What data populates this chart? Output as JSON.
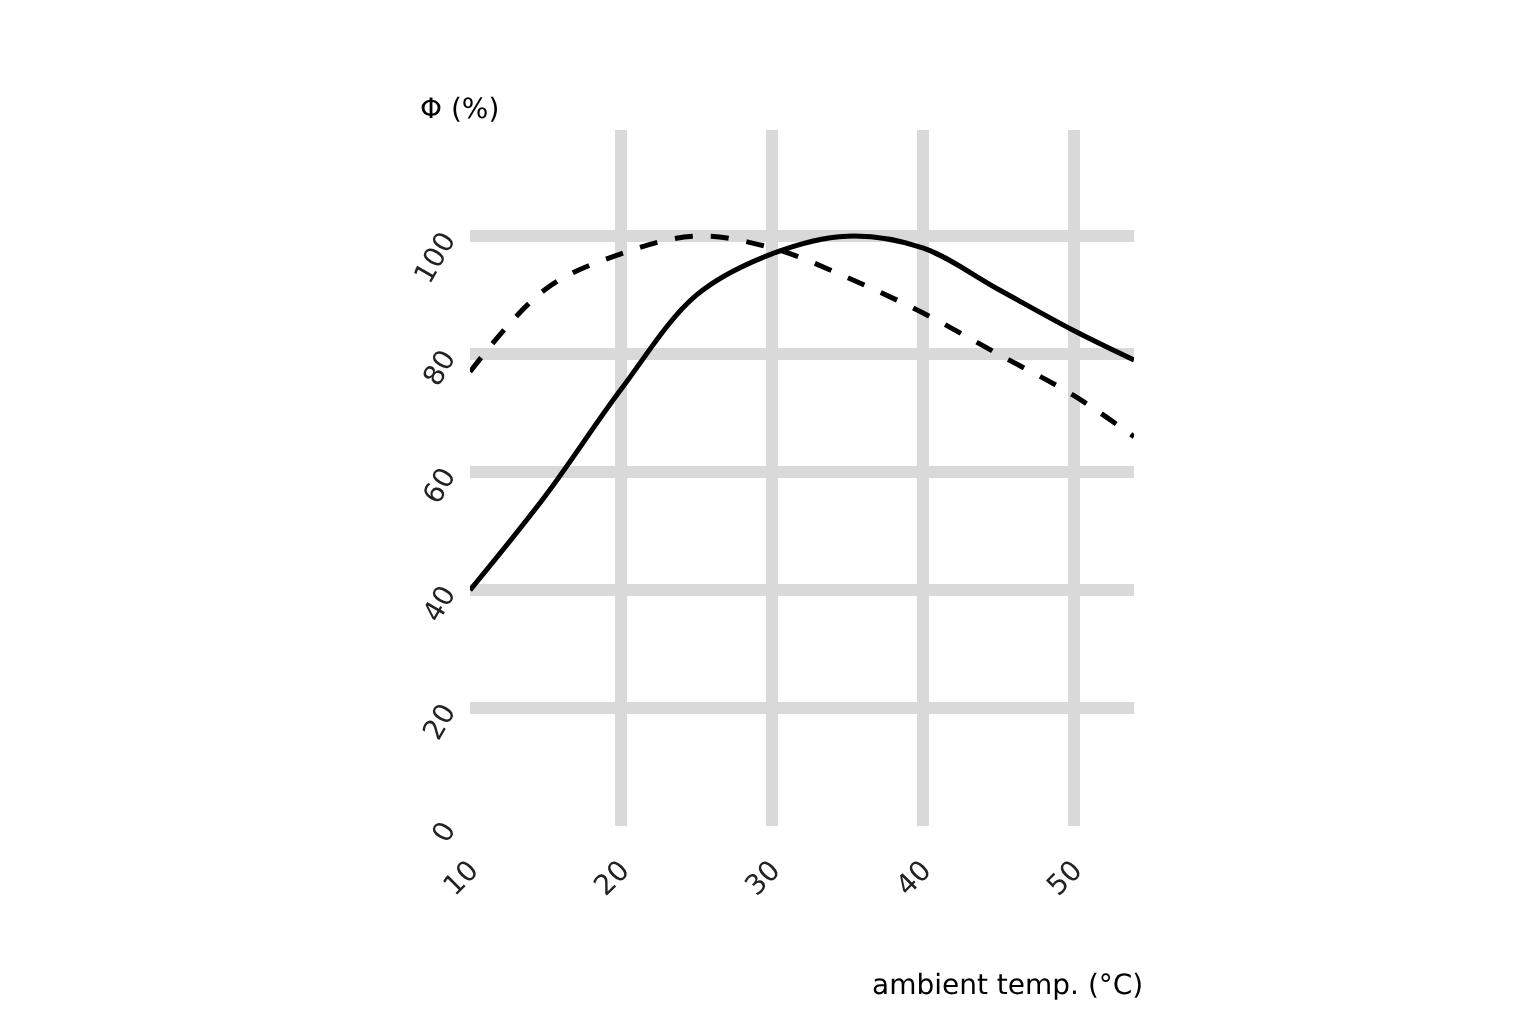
{
  "chart_data": {
    "type": "line",
    "xlabel": "ambient temp. (°C)",
    "ylabel": "Φ (%)",
    "x": [
      10,
      15,
      20,
      25,
      30,
      35,
      40,
      45,
      50,
      54
    ],
    "series": [
      {
        "color": "#000000",
        "line_style": "solid",
        "values": [
          40,
          56,
          74,
          90,
          97,
          100,
          98,
          91,
          84,
          79
        ]
      },
      {
        "color": "#000000",
        "line_style": "dashed",
        "values": [
          77,
          91,
          97,
          100,
          98,
          93,
          87,
          80,
          73,
          66
        ]
      }
    ],
    "xlim": [
      10,
      54
    ],
    "ylim": [
      0,
      118
    ],
    "xticks": [
      10,
      20,
      30,
      40,
      50
    ],
    "yticks": [
      0,
      20,
      40,
      60,
      80,
      100
    ],
    "grid": true,
    "marker": "none",
    "legend": false
  }
}
